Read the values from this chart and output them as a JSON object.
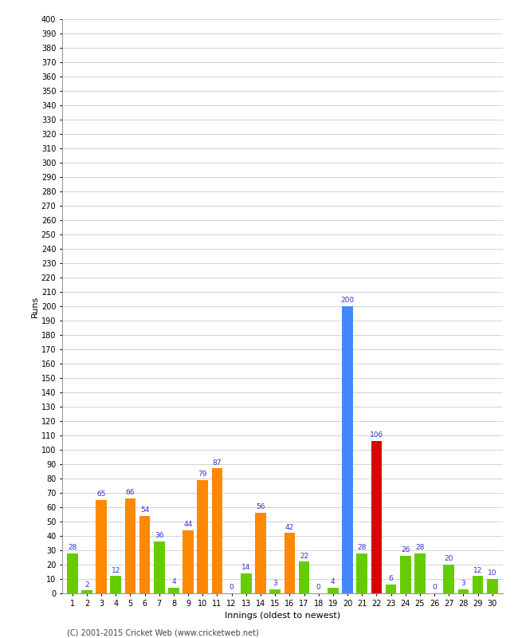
{
  "xlabel": "Innings (oldest to newest)",
  "ylabel": "Runs",
  "footer": "(C) 2001-2015 Cricket Web (www.cricketweb.net)",
  "innings": [
    1,
    2,
    3,
    4,
    5,
    6,
    7,
    8,
    9,
    10,
    11,
    12,
    13,
    14,
    15,
    16,
    17,
    18,
    19,
    20,
    21,
    22,
    23,
    24,
    25,
    26,
    27,
    28,
    29,
    30
  ],
  "values": [
    28,
    2,
    65,
    12,
    66,
    54,
    36,
    4,
    44,
    79,
    87,
    0,
    14,
    56,
    3,
    42,
    22,
    0,
    4,
    200,
    28,
    106,
    6,
    26,
    28,
    0,
    20,
    3,
    12,
    10
  ],
  "colors": [
    "#66cc00",
    "#66cc00",
    "#ff8800",
    "#66cc00",
    "#ff8800",
    "#ff8800",
    "#66cc00",
    "#66cc00",
    "#ff8800",
    "#ff8800",
    "#ff8800",
    "#66cc00",
    "#66cc00",
    "#ff8800",
    "#66cc00",
    "#ff8800",
    "#66cc00",
    "#66cc00",
    "#66cc00",
    "#4488ff",
    "#66cc00",
    "#dd0000",
    "#66cc00",
    "#66cc00",
    "#66cc00",
    "#66cc00",
    "#66cc00",
    "#66cc00",
    "#66cc00",
    "#66cc00"
  ],
  "label_color": "#3333cc",
  "ylim": [
    0,
    400
  ],
  "ytick_step": 10,
  "ytick_label_step": 10,
  "grid_color": "#cccccc",
  "bg_color": "#ffffff",
  "bar_label_fontsize": 6.5,
  "axis_label_fontsize": 8,
  "tick_fontsize": 7,
  "footer_fontsize": 7
}
